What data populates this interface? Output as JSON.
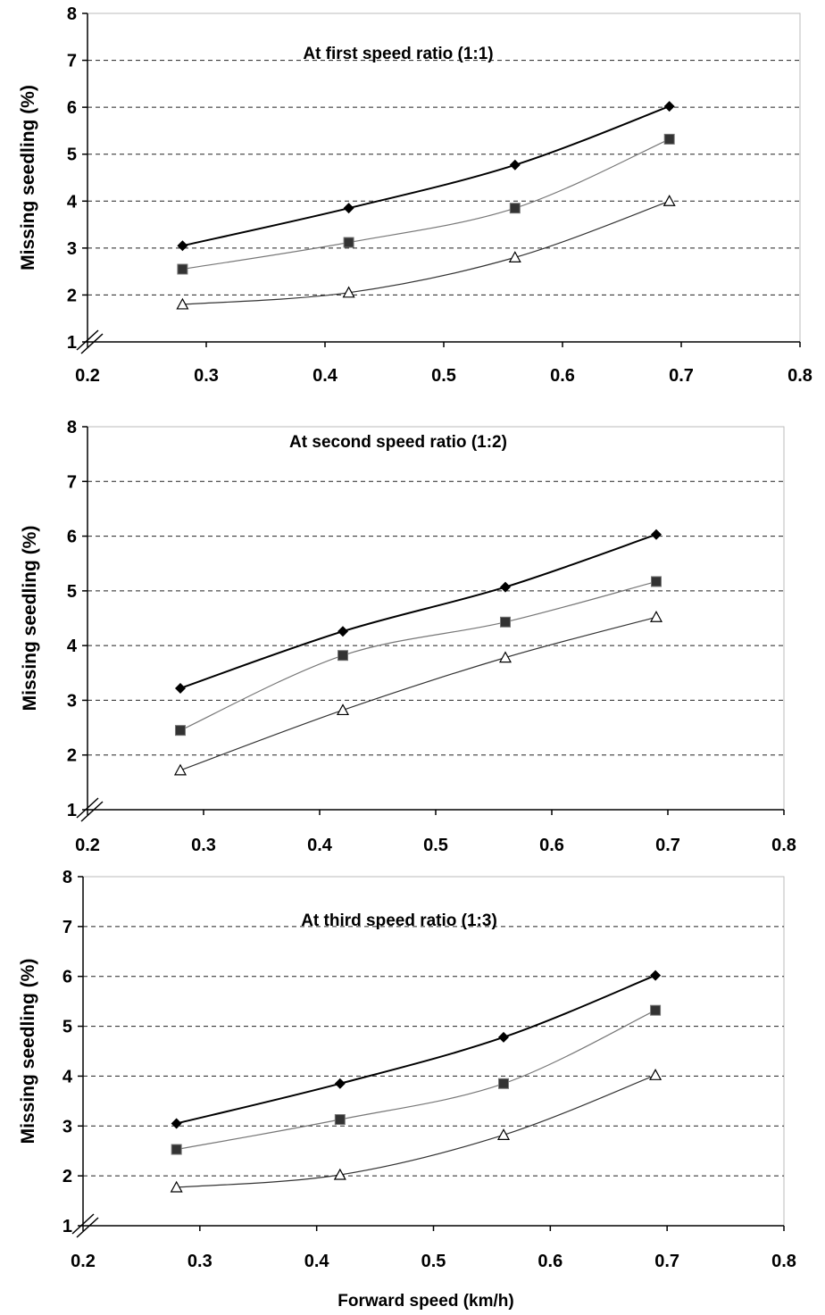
{
  "figure": {
    "xlabel": "Forward speed (km/h)"
  },
  "chart_data": [
    {
      "type": "line",
      "title": "At first speed ratio (1:1)",
      "ylabel": "Missing seedling  (%)",
      "xlabel": "",
      "xlim": [
        0.2,
        0.8
      ],
      "ylim": [
        1,
        8
      ],
      "xticks": [
        "0.2",
        "0.3",
        "0.4",
        "0.5",
        "0.6",
        "0.7",
        "0.8"
      ],
      "yticks": [
        "1",
        "2",
        "3",
        "4",
        "5",
        "6",
        "7",
        "8"
      ],
      "grid": "horizontal-dashed",
      "x": [
        0.28,
        0.42,
        0.56,
        0.69
      ],
      "series": [
        {
          "marker": "diamond",
          "color": "#000000",
          "values": [
            3.05,
            3.85,
            4.77,
            6.02
          ]
        },
        {
          "marker": "square",
          "color": "#777777",
          "values": [
            2.55,
            3.12,
            3.85,
            5.32
          ]
        },
        {
          "marker": "triangle",
          "color": "#333333",
          "values": [
            1.8,
            2.05,
            2.8,
            4.0
          ]
        }
      ]
    },
    {
      "type": "line",
      "title": "At second speed ratio (1:2)",
      "ylabel": "Missing seedling  (%)",
      "xlabel": "",
      "xlim": [
        0.2,
        0.8
      ],
      "ylim": [
        1,
        8
      ],
      "xticks": [
        "0.2",
        "0.3",
        "0.4",
        "0.5",
        "0.6",
        "0.7",
        "0.8"
      ],
      "yticks": [
        "1",
        "2",
        "3",
        "4",
        "5",
        "6",
        "7",
        "8"
      ],
      "grid": "horizontal-dashed",
      "x": [
        0.28,
        0.42,
        0.56,
        0.69
      ],
      "series": [
        {
          "marker": "diamond",
          "color": "#000000",
          "values": [
            3.22,
            4.26,
            5.07,
            6.03
          ]
        },
        {
          "marker": "square",
          "color": "#777777",
          "values": [
            2.45,
            3.82,
            4.43,
            5.17
          ]
        },
        {
          "marker": "triangle",
          "color": "#333333",
          "values": [
            1.72,
            2.82,
            3.78,
            4.52
          ]
        }
      ]
    },
    {
      "type": "line",
      "title": "At third speed ratio (1:3)",
      "ylabel": "Missing seedling  (%)",
      "xlabel": "Forward speed (km/h)",
      "xlim": [
        0.2,
        0.8
      ],
      "ylim": [
        1,
        8
      ],
      "xticks": [
        "0.2",
        "0.3",
        "0.4",
        "0.5",
        "0.6",
        "0.7",
        "0.8"
      ],
      "yticks": [
        "1",
        "2",
        "3",
        "4",
        "5",
        "6",
        "7",
        "8"
      ],
      "grid": "horizontal-dashed",
      "x": [
        0.28,
        0.42,
        0.56,
        0.69
      ],
      "series": [
        {
          "marker": "diamond",
          "color": "#000000",
          "values": [
            3.05,
            3.85,
            4.78,
            6.02
          ]
        },
        {
          "marker": "square",
          "color": "#777777",
          "values": [
            2.53,
            3.13,
            3.85,
            5.32
          ]
        },
        {
          "marker": "triangle",
          "color": "#333333",
          "values": [
            1.77,
            2.02,
            2.82,
            4.02
          ]
        }
      ]
    }
  ]
}
